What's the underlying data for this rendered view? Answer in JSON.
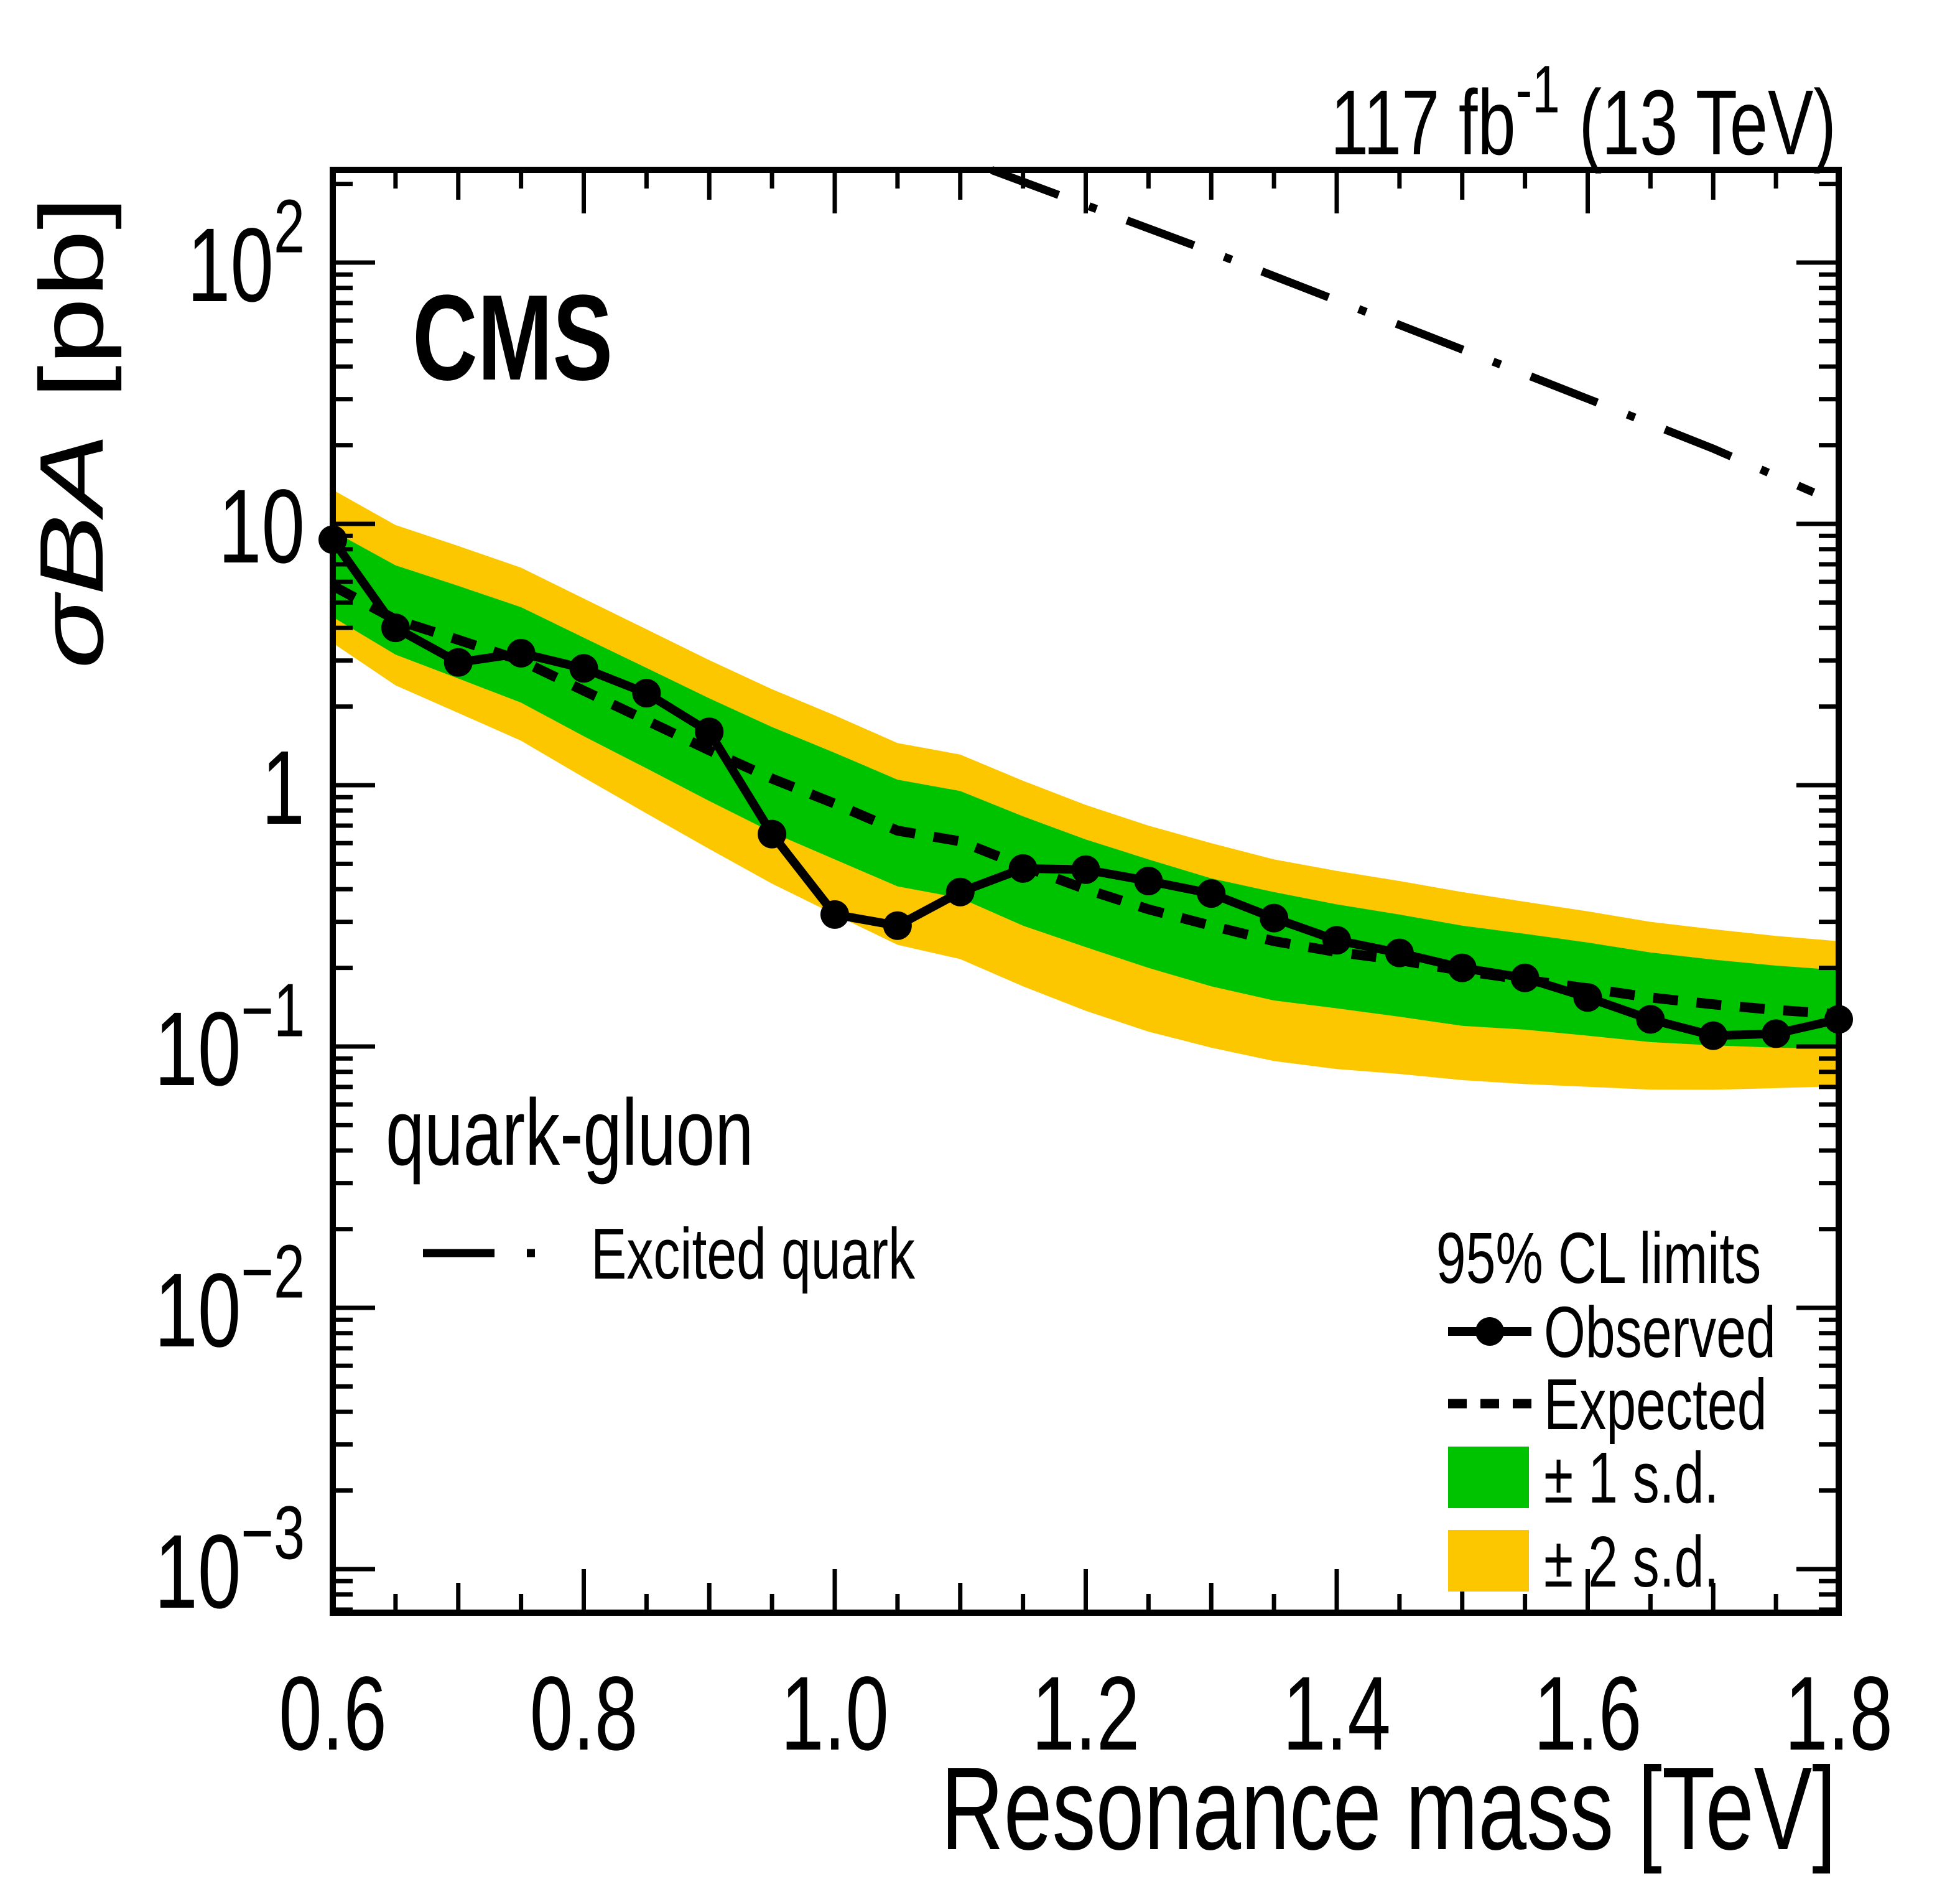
{
  "header": {
    "lumi_prefix": "117 fb",
    "lumi_sup": "-1",
    "lumi_suffix": " (13 TeV)",
    "experiment": "CMS"
  },
  "labels": {
    "channel": "quark-gluon",
    "signal_legend": "Excited quark",
    "legend_title": "95% CL limits",
    "legend_observed": "Observed",
    "legend_expected": "Expected",
    "legend_band1": "± 1 s.d.",
    "legend_band2": "± 2 s.d."
  },
  "chart_data": {
    "type": "line",
    "title": "",
    "xlabel": "Resonance mass [TeV]",
    "ylabel_italic": "σBA",
    "ylabel_units": " [pb]",
    "x_log": false,
    "y_log": true,
    "xlim": [
      0.6,
      1.8
    ],
    "ylim": [
      0.00068,
      226
    ],
    "x_ticks_labeled": [
      0.6,
      0.8,
      1.0,
      1.2,
      1.4,
      1.6,
      1.8
    ],
    "x_minor_step": 0.05,
    "y_decades": [
      2,
      1,
      0,
      -1,
      -2,
      -3
    ],
    "legend_position": "bottom-right",
    "grid": false,
    "x": [
      0.6,
      0.65,
      0.7,
      0.75,
      0.8,
      0.85,
      0.9,
      0.95,
      1.0,
      1.05,
      1.1,
      1.15,
      1.2,
      1.25,
      1.3,
      1.35,
      1.4,
      1.45,
      1.5,
      1.55,
      1.6,
      1.65,
      1.7,
      1.75,
      1.8
    ],
    "series": [
      {
        "name": "Observed",
        "style": "solid-markers",
        "values": [
          8.7,
          4.0,
          2.95,
          3.2,
          2.8,
          2.25,
          1.6,
          0.65,
          0.32,
          0.29,
          0.39,
          0.48,
          0.475,
          0.43,
          0.385,
          0.31,
          0.255,
          0.228,
          0.2,
          0.183,
          0.154,
          0.127,
          0.11,
          0.112,
          0.127
        ]
      },
      {
        "name": "Expected",
        "style": "dashed",
        "values": [
          5.8,
          4.3,
          3.6,
          3.0,
          2.3,
          1.77,
          1.36,
          1.06,
          0.85,
          0.67,
          0.61,
          0.49,
          0.4,
          0.335,
          0.29,
          0.253,
          0.23,
          0.214,
          0.195,
          0.18,
          0.167,
          0.154,
          0.145,
          0.138,
          0.133
        ]
      }
    ],
    "bands": {
      "one_sd": {
        "hi": [
          9.4,
          6.94,
          5.79,
          4.8,
          3.67,
          2.81,
          2.15,
          1.67,
          1.33,
          1.05,
          0.95,
          0.76,
          0.62,
          0.52,
          0.44,
          0.39,
          0.35,
          0.32,
          0.29,
          0.27,
          0.25,
          0.229,
          0.215,
          0.204,
          0.196
        ],
        "lo": [
          4.4,
          3.16,
          2.56,
          2.07,
          1.54,
          1.16,
          0.87,
          0.66,
          0.52,
          0.41,
          0.37,
          0.29,
          0.24,
          0.2,
          0.17,
          0.15,
          0.14,
          0.13,
          0.12,
          0.116,
          0.11,
          0.104,
          0.101,
          0.099,
          0.098
        ]
      },
      "two_sd": {
        "hi": [
          13.5,
          9.9,
          8.23,
          6.8,
          5.18,
          3.95,
          3.01,
          2.33,
          1.85,
          1.45,
          1.31,
          1.04,
          0.84,
          0.7,
          0.6,
          0.52,
          0.47,
          0.43,
          0.39,
          0.358,
          0.329,
          0.3,
          0.281,
          0.265,
          0.253
        ],
        "lo": [
          3.5,
          2.41,
          1.89,
          1.48,
          1.07,
          0.78,
          0.57,
          0.42,
          0.32,
          0.245,
          0.216,
          0.17,
          0.137,
          0.114,
          0.099,
          0.088,
          0.082,
          0.0785,
          0.0744,
          0.0718,
          0.0701,
          0.0684,
          0.0683,
          0.0693,
          0.0705
        ]
      }
    },
    "excited_quark_curve": {
      "x": [
        1.125,
        1.2,
        1.3,
        1.4,
        1.5,
        1.6,
        1.7,
        1.78
      ],
      "y": [
        226,
        166,
        110,
        71.6,
        46.5,
        30.1,
        19.4,
        13.2
      ]
    },
    "colors": {
      "one_sd": "#00c300",
      "two_sd": "#fdc700",
      "lines": "#000000"
    }
  }
}
